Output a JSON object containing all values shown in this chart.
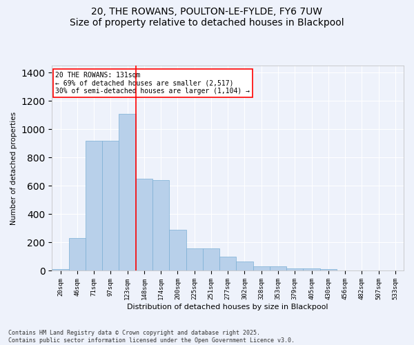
{
  "title": "20, THE ROWANS, POULTON-LE-FYLDE, FY6 7UW",
  "subtitle": "Size of property relative to detached houses in Blackpool",
  "xlabel": "Distribution of detached houses by size in Blackpool",
  "ylabel": "Number of detached properties",
  "categories": [
    "20sqm",
    "46sqm",
    "71sqm",
    "97sqm",
    "123sqm",
    "148sqm",
    "174sqm",
    "200sqm",
    "225sqm",
    "251sqm",
    "277sqm",
    "302sqm",
    "328sqm",
    "353sqm",
    "379sqm",
    "405sqm",
    "430sqm",
    "456sqm",
    "482sqm",
    "507sqm",
    "533sqm"
  ],
  "values": [
    10,
    230,
    920,
    920,
    1110,
    650,
    640,
    290,
    160,
    160,
    100,
    65,
    30,
    30,
    18,
    18,
    10,
    2,
    2,
    2,
    2
  ],
  "bar_color": "#b8d0ea",
  "bar_edge_color": "#7aafd4",
  "vline_x": 4.5,
  "vline_color": "red",
  "annotation_text": "20 THE ROWANS: 131sqm\n← 69% of detached houses are smaller (2,517)\n30% of semi-detached houses are larger (1,104) →",
  "annotation_box_color": "white",
  "annotation_box_edge": "red",
  "ylim": [
    0,
    1450
  ],
  "background_color": "#eef2fb",
  "plot_background": "#eef2fb",
  "footer": "Contains HM Land Registry data © Crown copyright and database right 2025.\nContains public sector information licensed under the Open Government Licence v3.0.",
  "title_fontsize": 10,
  "tick_fontsize": 6.5,
  "ylabel_fontsize": 7.5,
  "xlabel_fontsize": 8,
  "footer_fontsize": 6,
  "annotation_fontsize": 7
}
